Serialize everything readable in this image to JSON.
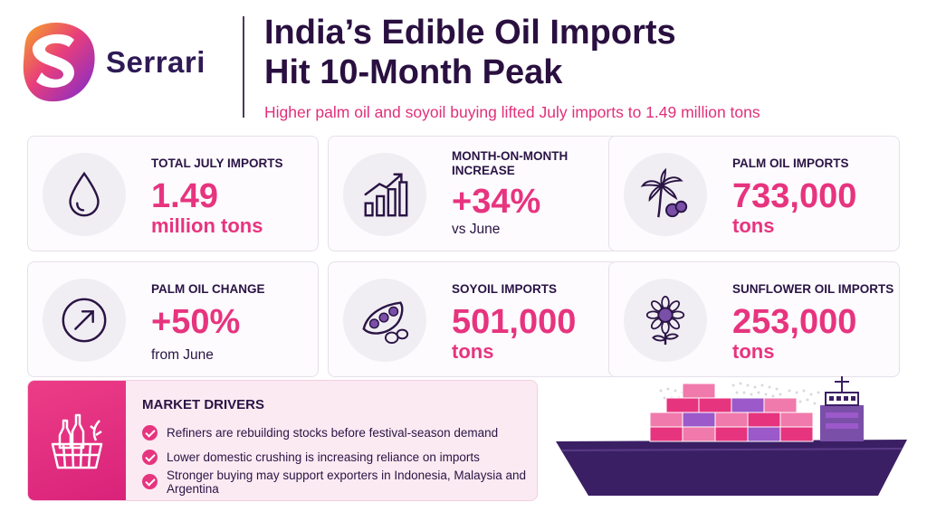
{
  "brand": {
    "name": "Serrari"
  },
  "header": {
    "title_line1": "India’s Edible Oil Imports",
    "title_line2": "Hit 10-Month Peak",
    "subtitle": "Higher palm oil and soyoil buying lifted July imports to 1.49 million tons"
  },
  "stats": [
    {
      "label": "TOTAL JULY IMPORTS",
      "value": "1.49",
      "unit": "million tons",
      "icon": "oil-drop-icon"
    },
    {
      "label": "MONTH-ON-MONTH INCREASE",
      "value": "+34%",
      "unit": "vs June",
      "icon": "bar-chart-up-icon"
    },
    {
      "label": "PALM OIL IMPORTS",
      "value": "733,000",
      "unit": "tons",
      "icon": "palm-tree-icon"
    },
    {
      "label": "PALM OIL CHANGE",
      "value": "+50%",
      "unit": "from June",
      "icon": "arrow-up-right-icon"
    },
    {
      "label": "SOYOIL IMPORTS",
      "value": "501,000",
      "unit": "tons",
      "icon": "soybean-icon"
    },
    {
      "label": "SUNFLOWER OIL IMPORTS",
      "value": "253,000",
      "unit": "tons",
      "icon": "sunflower-icon"
    }
  ],
  "drivers": {
    "heading": "MARKET DRIVERS",
    "icon": "grocery-basket-icon",
    "items": [
      "Refiners are rebuilding stocks before festival-season demand",
      "Lower domestic crushing is increasing reliance on imports",
      "Stronger buying may support exporters in Indonesia, Malaysia and Argentina"
    ]
  },
  "colors": {
    "accent": "#e7347f",
    "navy": "#2a1445",
    "purple": "#4b2a78",
    "card_bg": "#fdfbfd"
  }
}
